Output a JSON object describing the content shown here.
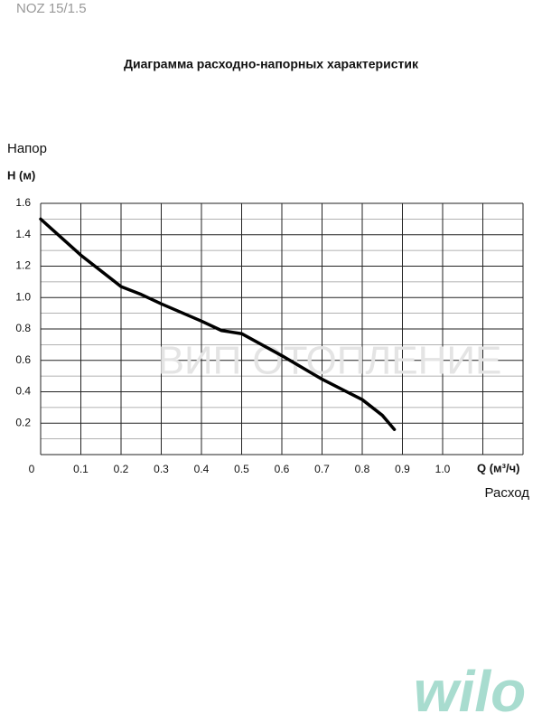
{
  "header": {
    "model": "NOZ 15/1.5",
    "watermark": "ВИП ОТОПЛЕНИЕ",
    "logo": "wilo"
  },
  "chart_data": {
    "type": "line",
    "title": "Диаграмма расходно-напорных характеристик",
    "y_label_top": "Напор",
    "y_label": "H (м)",
    "x_label": "Q (м³/ч)",
    "x_label_bottom": "Расход",
    "x": [
      0,
      0.1,
      0.2,
      0.25,
      0.3,
      0.4,
      0.45,
      0.5,
      0.6,
      0.7,
      0.8,
      0.85,
      0.88
    ],
    "series": [
      {
        "color": "#000000",
        "values": [
          1.5,
          1.27,
          1.07,
          1.02,
          0.96,
          0.85,
          0.79,
          0.77,
          0.63,
          0.48,
          0.35,
          0.25,
          0.16
        ]
      }
    ],
    "xlim": [
      0,
      1.2
    ],
    "ylim": [
      0,
      1.6
    ],
    "xticks": [
      0,
      0.1,
      0.2,
      0.3,
      0.4,
      0.5,
      0.6,
      0.7,
      0.8,
      0.9,
      {
        "value": 1,
        "label": "1.0"
      }
    ],
    "yticks": [
      0.2,
      0.4,
      0.6,
      0.8,
      {
        "value": 1,
        "label": "1.0"
      },
      1.2,
      1.4,
      1.6
    ],
    "xgrid": [
      0,
      0.1,
      0.2,
      0.3,
      0.4,
      0.5,
      0.6,
      0.7,
      0.8,
      0.9,
      1,
      1.1,
      1.2
    ],
    "ygrid": [
      0,
      0.1,
      0.2,
      0.3,
      0.4,
      0.5,
      0.6,
      0.7,
      0.8,
      0.9,
      1,
      1.1,
      1.2,
      1.3,
      1.4,
      1.5,
      1.6
    ]
  }
}
